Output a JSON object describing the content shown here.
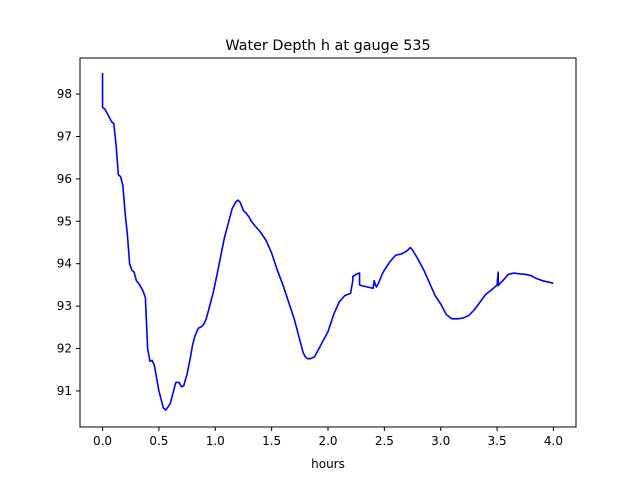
{
  "chart_data": {
    "type": "line",
    "title": "Water Depth h at gauge 535",
    "xlabel": "hours",
    "ylabel": "",
    "xlim": [
      -0.2,
      4.2
    ],
    "ylim": [
      90.15,
      98.85
    ],
    "xticks": [
      0.0,
      0.5,
      1.0,
      1.5,
      2.0,
      2.5,
      3.0,
      3.5,
      4.0
    ],
    "xtick_labels": [
      "0.0",
      "0.5",
      "1.0",
      "1.5",
      "2.0",
      "2.5",
      "3.0",
      "3.5",
      "4.0"
    ],
    "yticks": [
      91,
      92,
      93,
      94,
      95,
      96,
      97,
      98
    ],
    "ytick_labels": [
      "91",
      "92",
      "93",
      "94",
      "95",
      "96",
      "97",
      "98"
    ],
    "grid": false,
    "series": [
      {
        "color": "#0000ff",
        "x": [
          0.0,
          0.0,
          0.0,
          0.02,
          0.04,
          0.06,
          0.08,
          0.1,
          0.12,
          0.14,
          0.16,
          0.18,
          0.2,
          0.22,
          0.24,
          0.26,
          0.28,
          0.3,
          0.33,
          0.36,
          0.38,
          0.4,
          0.42,
          0.44,
          0.46,
          0.48,
          0.5,
          0.52,
          0.54,
          0.56,
          0.58,
          0.6,
          0.62,
          0.65,
          0.68,
          0.7,
          0.72,
          0.75,
          0.78,
          0.8,
          0.82,
          0.85,
          0.88,
          0.9,
          0.92,
          0.94,
          0.96,
          0.98,
          1.0,
          1.02,
          1.05,
          1.08,
          1.1,
          1.12,
          1.15,
          1.18,
          1.2,
          1.22,
          1.25,
          1.27,
          1.3,
          1.32,
          1.35,
          1.4,
          1.45,
          1.5,
          1.55,
          1.6,
          1.65,
          1.7,
          1.75,
          1.78,
          1.8,
          1.82,
          1.84,
          1.86,
          1.88,
          1.9,
          1.92,
          1.95,
          2.0,
          2.05,
          2.1,
          2.15,
          2.2,
          2.22,
          2.22,
          2.25,
          2.28,
          2.28,
          2.3,
          2.35,
          2.4,
          2.41,
          2.42,
          2.43,
          2.45,
          2.48,
          2.5,
          2.55,
          2.6,
          2.65,
          2.7,
          2.73,
          2.75,
          2.8,
          2.85,
          2.9,
          2.95,
          3.0,
          3.05,
          3.1,
          3.15,
          3.2,
          3.25,
          3.3,
          3.35,
          3.4,
          3.45,
          3.5,
          3.51,
          3.51,
          3.52,
          3.55,
          3.6,
          3.65,
          3.7,
          3.75,
          3.8,
          3.85,
          3.9,
          3.95,
          4.0
        ],
        "y": [
          98.5,
          98.0,
          97.68,
          97.65,
          97.55,
          97.45,
          97.35,
          97.3,
          96.8,
          96.1,
          96.05,
          95.85,
          95.2,
          94.7,
          94.0,
          93.85,
          93.8,
          93.6,
          93.5,
          93.35,
          93.2,
          92.0,
          91.7,
          91.72,
          91.6,
          91.3,
          91.0,
          90.8,
          90.6,
          90.55,
          90.62,
          90.7,
          90.9,
          91.2,
          91.2,
          91.1,
          91.12,
          91.4,
          91.8,
          92.1,
          92.3,
          92.48,
          92.52,
          92.58,
          92.7,
          92.9,
          93.1,
          93.3,
          93.55,
          93.8,
          94.2,
          94.6,
          94.8,
          95.0,
          95.3,
          95.45,
          95.5,
          95.45,
          95.25,
          95.2,
          95.1,
          95.0,
          94.9,
          94.75,
          94.55,
          94.25,
          93.85,
          93.5,
          93.1,
          92.7,
          92.2,
          91.9,
          91.8,
          91.76,
          91.76,
          91.78,
          91.8,
          91.9,
          92.0,
          92.15,
          92.4,
          92.8,
          93.1,
          93.25,
          93.3,
          93.6,
          93.7,
          93.75,
          93.78,
          93.5,
          93.48,
          93.45,
          93.42,
          93.6,
          93.5,
          93.45,
          93.55,
          93.75,
          93.85,
          94.05,
          94.2,
          94.23,
          94.3,
          94.38,
          94.32,
          94.1,
          93.85,
          93.55,
          93.25,
          93.05,
          92.8,
          92.7,
          92.7,
          92.72,
          92.78,
          92.92,
          93.1,
          93.28,
          93.38,
          93.5,
          93.8,
          93.48,
          93.52,
          93.6,
          93.75,
          93.78,
          93.76,
          93.75,
          93.72,
          93.65,
          93.6,
          93.57,
          93.54
        ]
      }
    ]
  }
}
